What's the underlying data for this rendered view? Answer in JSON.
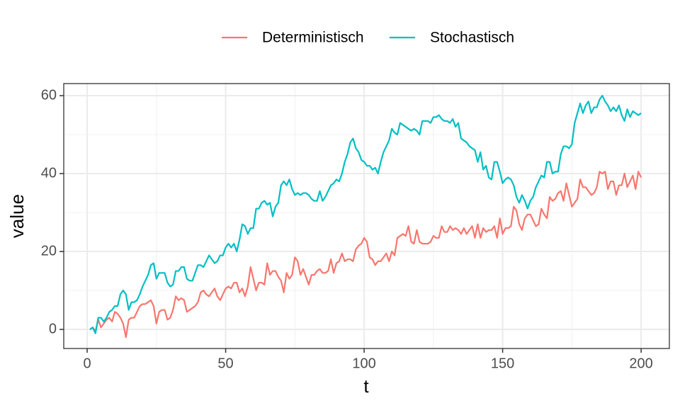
{
  "chart_data": {
    "type": "line",
    "xlabel": "t",
    "ylabel": "value",
    "xlim": [
      -8.45,
      210.2
    ],
    "ylim": [
      -4.9,
      63.1
    ],
    "xticks": [
      0,
      50,
      100,
      150,
      200
    ],
    "yticks": [
      0,
      20,
      40,
      60
    ],
    "xminor": [
      25,
      75,
      125,
      175
    ],
    "yminor": [
      10,
      30,
      50
    ],
    "grid": true,
    "legend": "top",
    "x": [
      1,
      2,
      3,
      4,
      5,
      6,
      7,
      8,
      9,
      10,
      11,
      12,
      13,
      14,
      15,
      16,
      17,
      18,
      19,
      20,
      21,
      22,
      23,
      24,
      25,
      26,
      27,
      28,
      29,
      30,
      31,
      32,
      33,
      34,
      35,
      36,
      37,
      38,
      39,
      40,
      41,
      42,
      43,
      44,
      45,
      46,
      47,
      48,
      49,
      50,
      51,
      52,
      53,
      54,
      55,
      56,
      57,
      58,
      59,
      60,
      61,
      62,
      63,
      64,
      65,
      66,
      67,
      68,
      69,
      70,
      71,
      72,
      73,
      74,
      75,
      76,
      77,
      78,
      79,
      80,
      81,
      82,
      83,
      84,
      85,
      86,
      87,
      88,
      89,
      90,
      91,
      92,
      93,
      94,
      95,
      96,
      97,
      98,
      99,
      100,
      101,
      102,
      103,
      104,
      105,
      106,
      107,
      108,
      109,
      110,
      111,
      112,
      113,
      114,
      115,
      116,
      117,
      118,
      119,
      120,
      121,
      122,
      123,
      124,
      125,
      126,
      127,
      128,
      129,
      130,
      131,
      132,
      133,
      134,
      135,
      136,
      137,
      138,
      139,
      140,
      141,
      142,
      143,
      144,
      145,
      146,
      147,
      148,
      149,
      150,
      151,
      152,
      153,
      154,
      155,
      156,
      157,
      158,
      159,
      160,
      161,
      162,
      163,
      164,
      165,
      166,
      167,
      168,
      169,
      170,
      171,
      172,
      173,
      174,
      175,
      176,
      177,
      178,
      179,
      180,
      181,
      182,
      183,
      184,
      185,
      186,
      187,
      188,
      189,
      190,
      191,
      192,
      193,
      194,
      195,
      196,
      197,
      198,
      199,
      200
    ],
    "series": [
      {
        "name": "Deterministisch",
        "color": "#F8766D",
        "values": [
          0,
          0.5,
          -0.5,
          2.5,
          0.5,
          1.5,
          2.5,
          3,
          2,
          4.5,
          4,
          3,
          1.5,
          -2,
          2.5,
          3,
          3,
          4.5,
          6,
          6.5,
          6.5,
          7,
          7.5,
          6,
          1.5,
          4.5,
          5,
          5,
          2.5,
          3,
          5,
          8.5,
          7.5,
          8,
          7.5,
          4.5,
          5,
          5.5,
          6,
          7,
          9.5,
          10,
          9,
          8.5,
          9.5,
          10.5,
          8.5,
          7.5,
          9,
          10.5,
          11,
          10.5,
          12,
          12,
          9.5,
          10.5,
          8.5,
          11,
          16,
          13,
          10,
          12,
          12,
          11.5,
          17,
          14,
          15,
          15,
          13.5,
          12.5,
          9.5,
          14.5,
          13,
          14,
          18.5,
          17.5,
          14,
          15.5,
          13.5,
          11.5,
          14,
          14,
          15,
          15.5,
          14.5,
          14.5,
          15,
          18,
          14.5,
          17,
          17.5,
          19.5,
          17.5,
          18,
          18,
          17.5,
          20.5,
          21.5,
          22,
          23.5,
          22.5,
          18.5,
          18,
          16.5,
          17.5,
          17.5,
          18.5,
          19.5,
          17.5,
          20,
          19,
          23.5,
          24,
          24.5,
          24,
          26.5,
          22.5,
          22,
          25.5,
          22.5,
          22,
          22,
          22,
          22.5,
          24,
          23.5,
          23.5,
          26.5,
          25,
          25,
          26.5,
          25.5,
          26,
          25.5,
          24.5,
          26,
          24.5,
          25.5,
          26.5,
          23.5,
          27,
          23.5,
          26,
          25,
          25.5,
          25.5,
          26.5,
          23.5,
          28.5,
          24.5,
          26,
          26,
          26.5,
          31.5,
          30.5,
          27,
          25.5,
          28.5,
          29.5,
          29.5,
          28,
          26.5,
          27,
          31,
          29.5,
          28.5,
          34,
          33,
          33.5,
          35,
          35.5,
          33,
          37.5,
          34.5,
          31.5,
          32.5,
          33.5,
          38.5,
          36.5,
          36.5,
          35.5,
          34.5,
          35,
          36.5,
          40.5,
          40,
          40.5,
          36,
          38,
          38,
          34.5,
          37,
          37,
          40,
          36.5,
          38,
          39.5,
          36,
          40.5,
          39
        ]
      },
      {
        "name": "Stochastisch",
        "color": "#00BFC4",
        "values": [
          0,
          0.5,
          -1,
          3,
          3,
          2,
          3,
          4.5,
          5,
          6,
          6,
          9,
          10,
          9,
          5,
          7,
          7,
          7.5,
          9,
          11,
          12.5,
          14,
          16.5,
          17,
          13,
          14.5,
          14.5,
          14.5,
          12,
          11,
          11.5,
          15,
          15,
          16,
          16,
          13,
          12.5,
          12.5,
          14.5,
          16.5,
          16.5,
          16,
          17.5,
          19,
          18,
          17,
          17.5,
          19,
          19,
          21,
          22,
          21,
          22,
          20,
          23,
          27,
          26.5,
          24.5,
          26,
          26,
          31,
          31,
          32.5,
          33,
          32,
          32.5,
          29,
          31.5,
          32.5,
          37,
          38,
          37,
          38.5,
          36,
          34.5,
          35,
          34.5,
          35,
          35,
          34.5,
          33.5,
          33,
          33,
          35.5,
          33,
          34,
          35.5,
          37,
          37.5,
          38.5,
          38,
          40,
          43,
          45,
          48,
          49,
          46.5,
          45.5,
          43.5,
          43,
          42,
          42,
          41,
          41.5,
          40,
          43,
          45.5,
          47,
          48.5,
          51.5,
          50.5,
          50,
          53,
          52.5,
          52,
          51.5,
          51,
          51.5,
          51,
          50,
          53.5,
          53.5,
          53.5,
          53,
          54.5,
          54.5,
          55,
          54,
          53.5,
          53.5,
          53,
          54,
          52,
          53,
          49,
          48.5,
          48,
          47,
          46.5,
          46,
          43,
          45.5,
          41,
          42,
          39,
          38.5,
          43,
          43,
          40.5,
          37.5,
          38.5,
          39,
          38.5,
          37,
          34,
          32.5,
          34.5,
          33,
          31,
          33,
          34,
          36.5,
          38,
          39.5,
          39,
          43,
          43,
          40,
          40.5,
          40.5,
          45,
          47,
          47,
          46.5,
          47.5,
          53,
          55.5,
          58,
          55.5,
          57.5,
          58.5,
          55.5,
          57,
          57,
          59,
          60,
          58.5,
          57.5,
          56,
          57,
          56,
          57.5,
          55,
          53.5,
          56.5,
          54.5,
          56,
          55.5,
          55,
          55.5
        ]
      }
    ]
  }
}
